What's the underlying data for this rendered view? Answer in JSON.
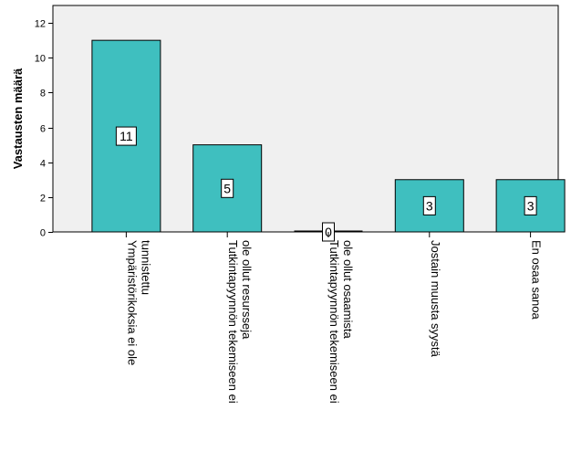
{
  "chart_data": {
    "type": "bar",
    "title": "",
    "xlabel": "",
    "ylabel": "Vastausten määrä",
    "ylim": [
      0,
      13
    ],
    "yticks": [
      0,
      2,
      4,
      6,
      8,
      10,
      12
    ],
    "grid": false,
    "legend": "none",
    "categories": [
      [
        "Ympäristörikoksia ei ole",
        "tunnistettu"
      ],
      [
        "Tutkintapyynnön tekemiseen ei",
        "ole ollut resursseja"
      ],
      [
        "Tutkintapyynnön tekemiseen ei",
        "ole ollut osaamista"
      ],
      [
        "Jostain muusta syystä"
      ],
      [
        "En osaa sanoa"
      ]
    ],
    "values": [
      11,
      5,
      0,
      3,
      3
    ],
    "data_labels": [
      "11",
      "5",
      "0",
      "3",
      "3"
    ],
    "colors": {
      "bar_fill": "#3fbfbf",
      "plot_background": "#f0f0f0",
      "axis": "#000000",
      "label_box": "#ffffff"
    }
  }
}
